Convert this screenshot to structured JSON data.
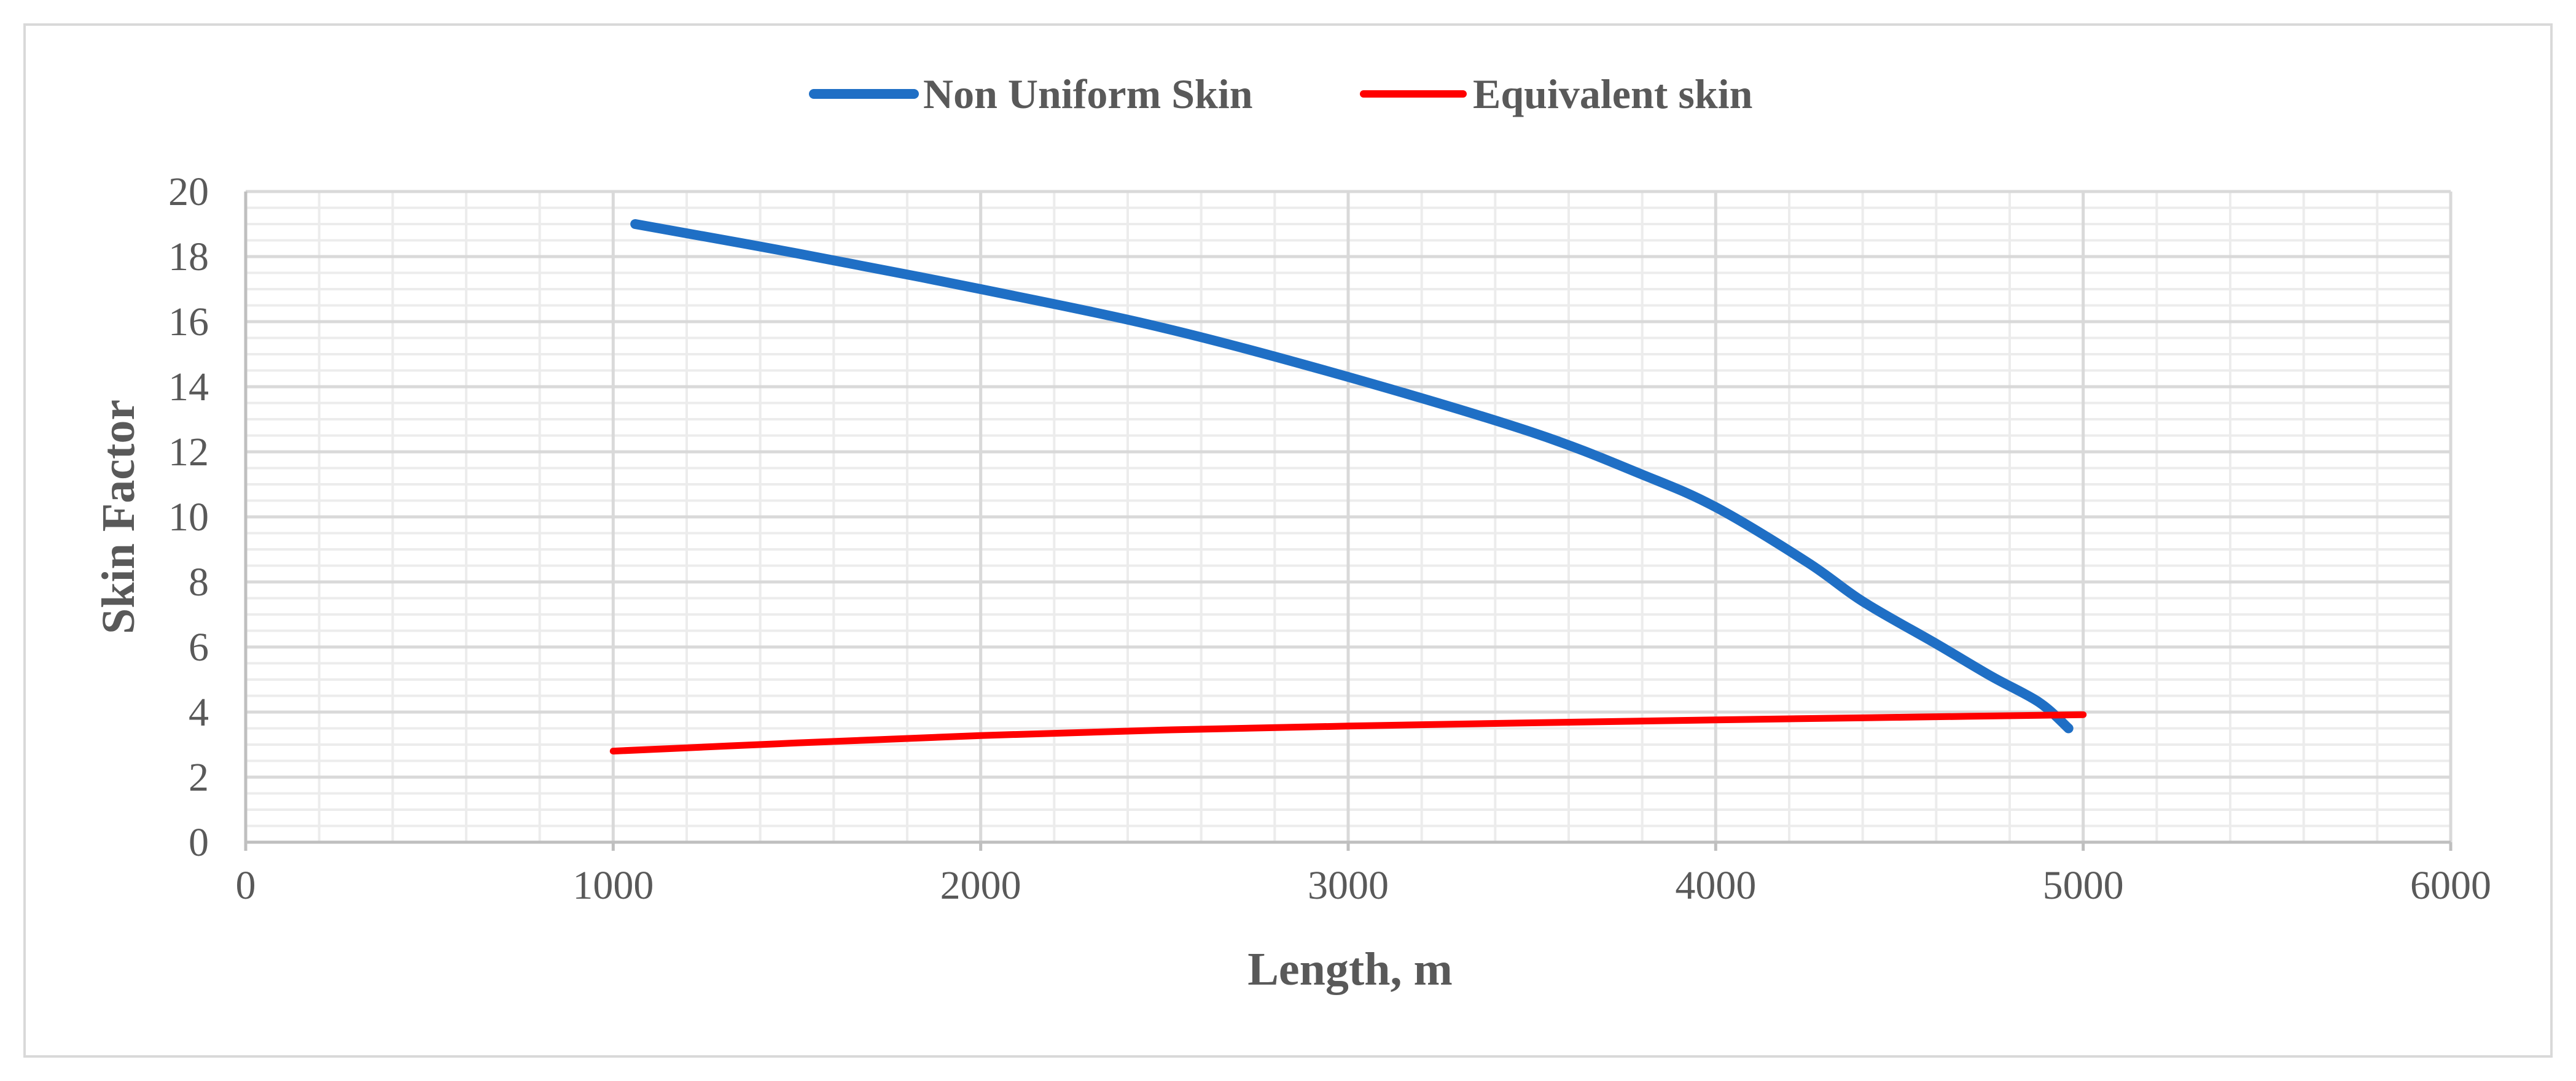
{
  "chart_data": {
    "type": "line",
    "title": "",
    "xlabel": "Length, m",
    "ylabel": "Skin Factor",
    "xlim": [
      0,
      6000
    ],
    "ylim": [
      0,
      20
    ],
    "x_ticks": [
      0,
      1000,
      2000,
      3000,
      4000,
      5000,
      6000
    ],
    "y_ticks": [
      0,
      2,
      4,
      6,
      8,
      10,
      12,
      14,
      16,
      18,
      20
    ],
    "grid": true,
    "legend_position": "top",
    "series": [
      {
        "name": "Non Uniform Skin",
        "color": "#1f6fc5",
        "x": [
          1060,
          1500,
          2000,
          2500,
          3000,
          3500,
          3800,
          4000,
          4250,
          4400,
          4600,
          4750,
          4880,
          4960
        ],
        "y": [
          19.0,
          18.1,
          17.0,
          15.8,
          14.3,
          12.6,
          11.3,
          10.3,
          8.6,
          7.4,
          6.1,
          5.1,
          4.3,
          3.5
        ]
      },
      {
        "name": "Equivalent skin",
        "color": "#ff0000",
        "x": [
          1000,
          1500,
          2000,
          2500,
          3000,
          3500,
          4000,
          4500,
          5000
        ],
        "y": [
          2.8,
          3.05,
          3.28,
          3.45,
          3.57,
          3.67,
          3.76,
          3.84,
          3.92
        ]
      }
    ]
  }
}
